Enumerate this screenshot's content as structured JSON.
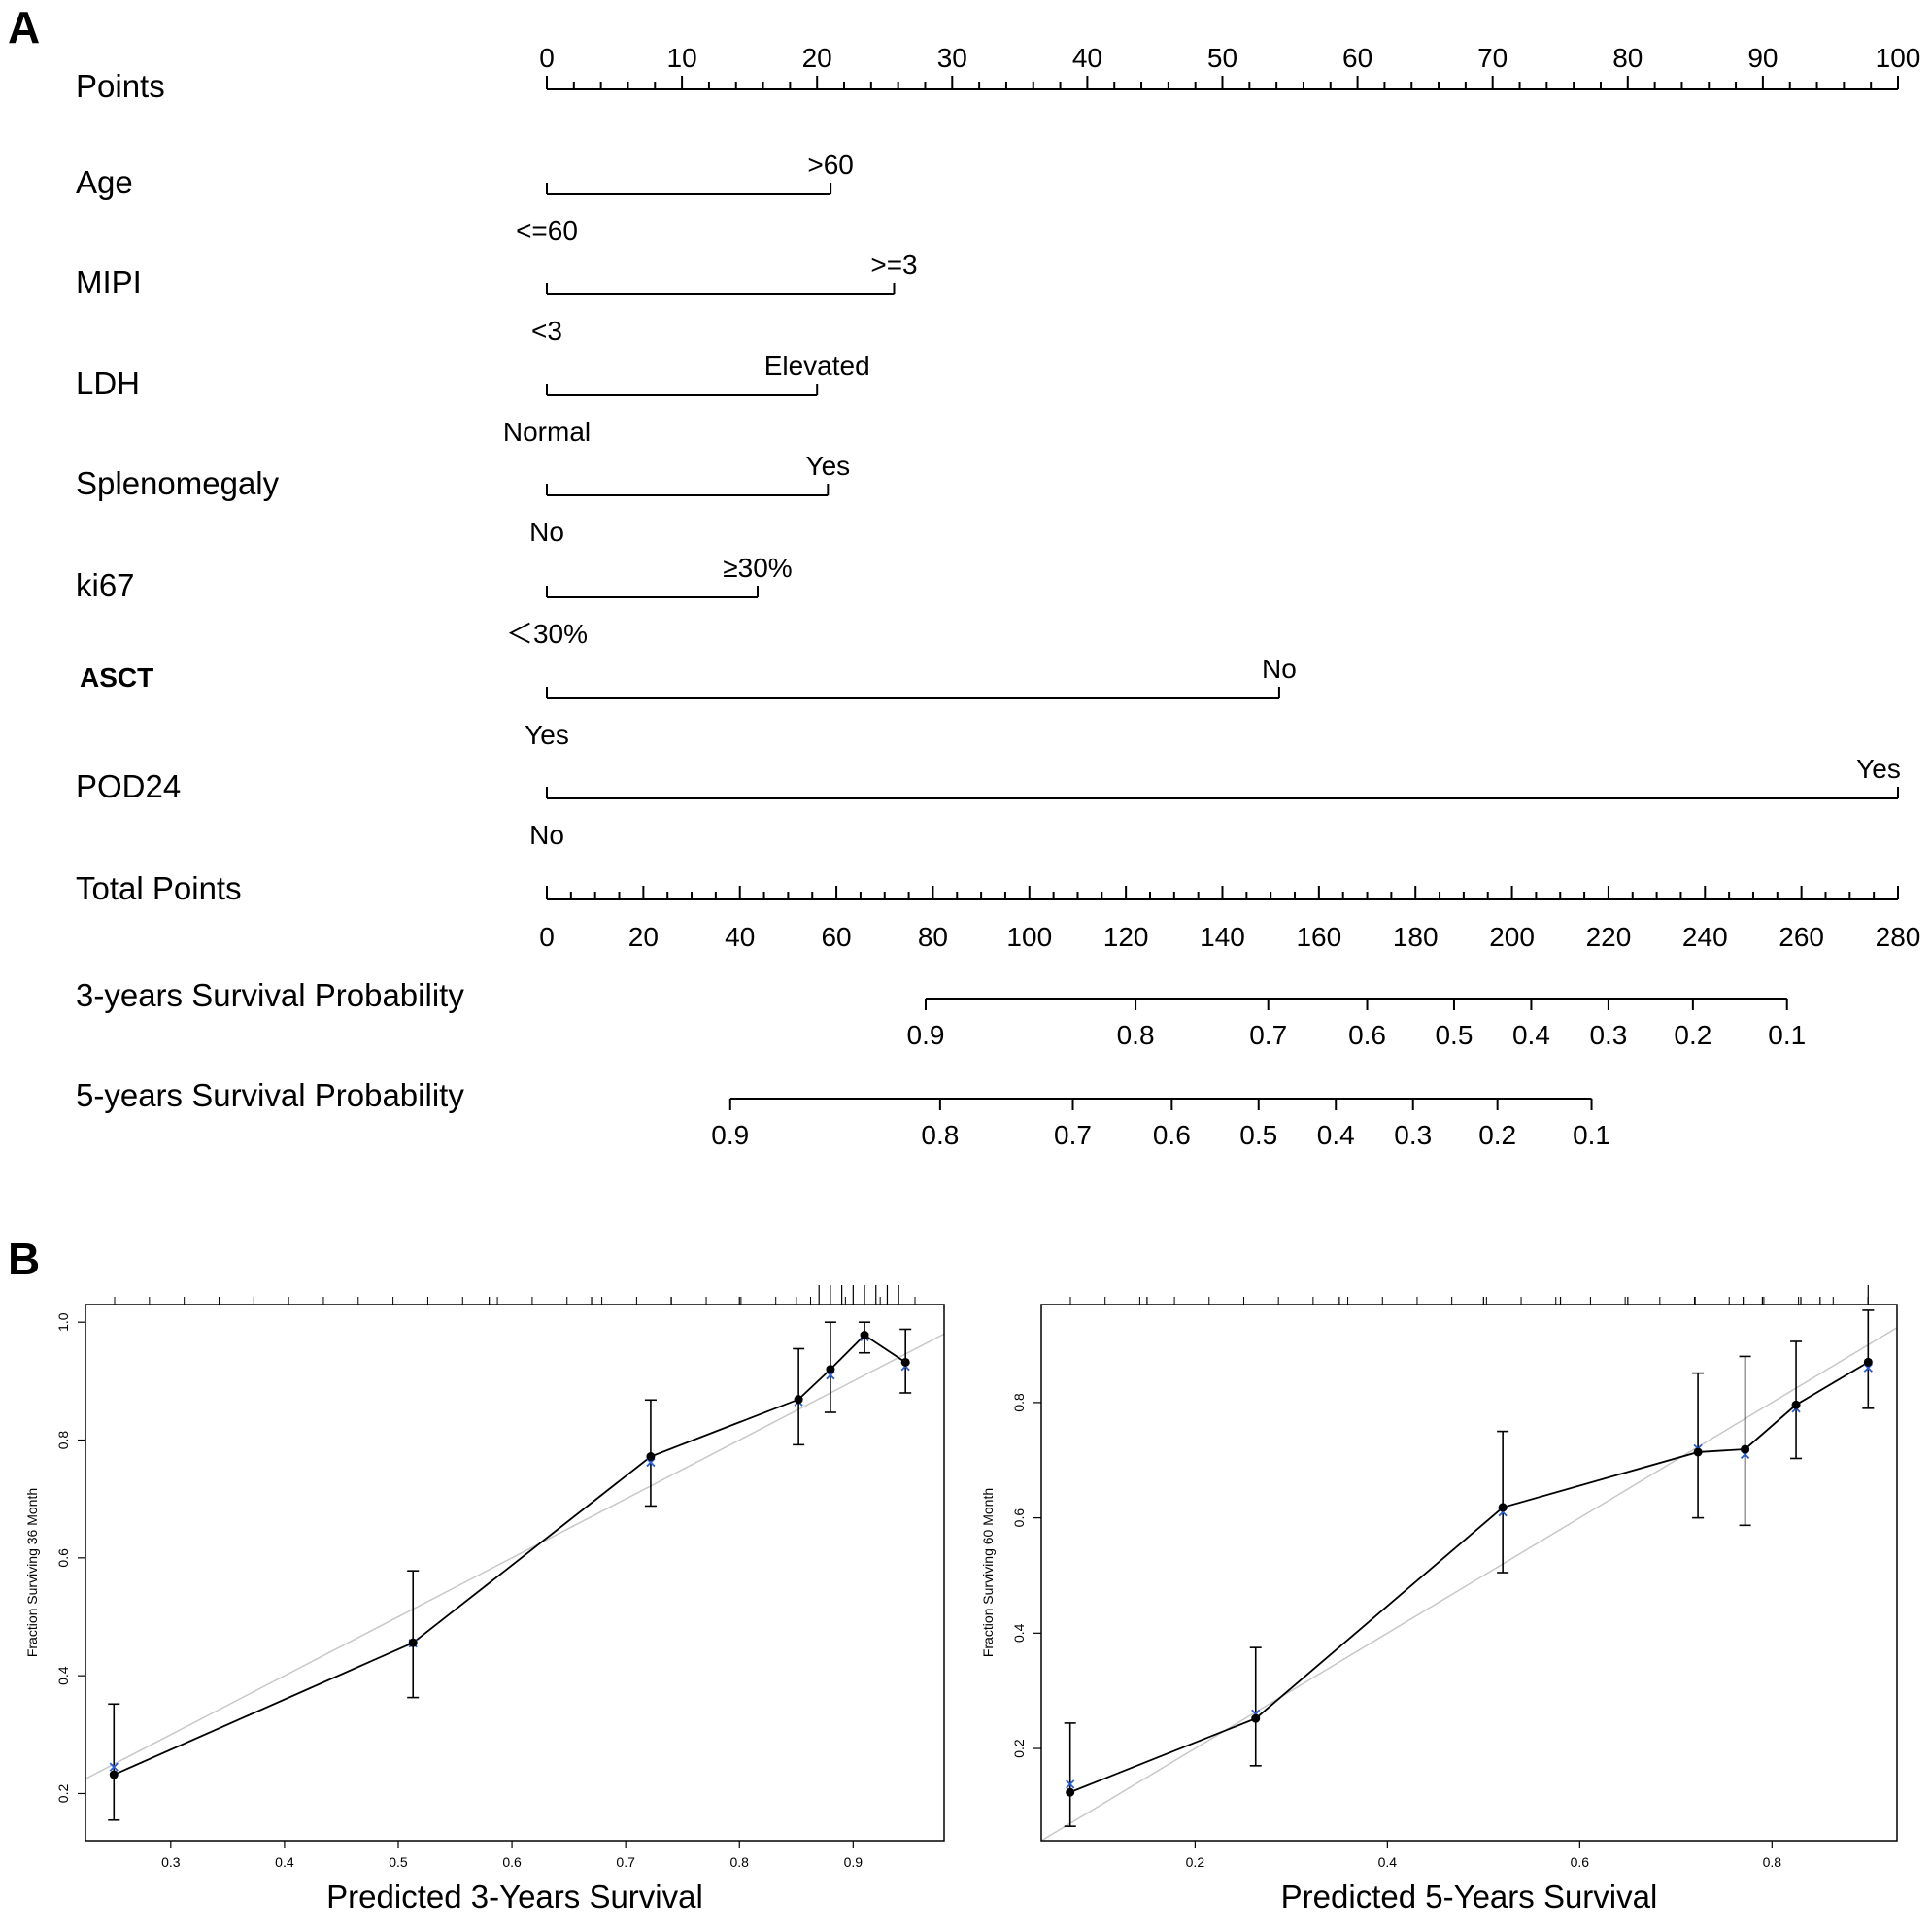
{
  "panel_a_letter": "A",
  "panel_b_letter": "B",
  "chart_data": [
    {
      "type": "nomogram",
      "points_axis": {
        "label": "Points",
        "range": [
          0,
          100
        ],
        "ticks": [
          "0",
          "10",
          "20",
          "30",
          "40",
          "50",
          "60",
          "70",
          "80",
          "90",
          "100"
        ]
      },
      "variables": [
        {
          "name": "Age",
          "bold": false,
          "levels": [
            {
              "label": "<=60",
              "points": 0
            },
            {
              "label": ">60",
              "points": 21
            }
          ]
        },
        {
          "name": "MIPI",
          "bold": false,
          "levels": [
            {
              "label": "<3",
              "points": 0
            },
            {
              "label": ">=3",
              "points": 25.7
            }
          ]
        },
        {
          "name": "LDH",
          "bold": false,
          "levels": [
            {
              "label": "Normal",
              "points": 0
            },
            {
              "label": "Elevated",
              "points": 20
            }
          ]
        },
        {
          "name": "Splenomegaly",
          "bold": false,
          "levels": [
            {
              "label": "No",
              "points": 0
            },
            {
              "label": "Yes",
              "points": 20.8
            }
          ]
        },
        {
          "name": "ki67",
          "bold": false,
          "levels": [
            {
              "label": "＜30%",
              "points": 0
            },
            {
              "label": "≥30%",
              "points": 15.6
            }
          ]
        },
        {
          "name": "ASCT",
          "bold": true,
          "levels": [
            {
              "label": "Yes",
              "points": 0
            },
            {
              "label": "No",
              "points": 54.2
            }
          ]
        },
        {
          "name": "POD24",
          "bold": false,
          "levels": [
            {
              "label": "No",
              "points": 0
            },
            {
              "label": "Yes",
              "points": 100
            }
          ]
        }
      ],
      "total_points_axis": {
        "label": "Total Points",
        "range": [
          0,
          280
        ],
        "ticks": [
          "0",
          "20",
          "40",
          "60",
          "80",
          "100",
          "120",
          "140",
          "160",
          "180",
          "200",
          "220",
          "240",
          "260",
          "280"
        ]
      },
      "survival_axes": [
        {
          "label": "3-years Survival Probability",
          "range_total_points": [
            78.5,
            257
          ],
          "ticks": [
            {
              "label": "0.9",
              "total_points": 78.5
            },
            {
              "label": "0.8",
              "total_points": 122
            },
            {
              "label": "0.7",
              "total_points": 149.5
            },
            {
              "label": "0.6",
              "total_points": 170
            },
            {
              "label": "0.5",
              "total_points": 188
            },
            {
              "label": "0.4",
              "total_points": 204
            },
            {
              "label": "0.3",
              "total_points": 220
            },
            {
              "label": "0.2",
              "total_points": 237.5
            },
            {
              "label": "0.1",
              "total_points": 257
            }
          ]
        },
        {
          "label": "5-years Survival Probability",
          "range_total_points": [
            38,
            216.5
          ],
          "ticks": [
            {
              "label": "0.9",
              "total_points": 38
            },
            {
              "label": "0.8",
              "total_points": 81.5
            },
            {
              "label": "0.7",
              "total_points": 109
            },
            {
              "label": "0.6",
              "total_points": 129.5
            },
            {
              "label": "0.5",
              "total_points": 147.5
            },
            {
              "label": "0.4",
              "total_points": 163.5
            },
            {
              "label": "0.3",
              "total_points": 179.5
            },
            {
              "label": "0.2",
              "total_points": 197
            },
            {
              "label": "0.1",
              "total_points": 216.5
            }
          ]
        }
      ]
    },
    {
      "type": "calibration",
      "xlabel": "Predicted 3-Years Survival",
      "ylabel": "Fraction Surviving 36 Month",
      "xlim": [
        0.225,
        0.98
      ],
      "ylim": [
        0.12,
        1.03
      ],
      "xticks": [
        "0.3",
        "0.4",
        "0.5",
        "0.6",
        "0.7",
        "0.8",
        "0.9"
      ],
      "yticks": [
        "0.2",
        "0.4",
        "0.6",
        "0.8",
        "1.0"
      ],
      "ideal_line": [
        [
          0.225,
          0.225
        ],
        [
          0.98,
          0.98
        ]
      ],
      "points": [
        {
          "x": 0.25,
          "y": 0.232,
          "lo": 0.155,
          "hi": 0.352,
          "corrected": 0.245
        },
        {
          "x": 0.513,
          "y": 0.456,
          "lo": 0.363,
          "hi": 0.578,
          "corrected": 0.455
        },
        {
          "x": 0.722,
          "y": 0.772,
          "lo": 0.688,
          "hi": 0.868,
          "corrected": 0.762
        },
        {
          "x": 0.852,
          "y": 0.869,
          "lo": 0.792,
          "hi": 0.955,
          "corrected": 0.865
        },
        {
          "x": 0.88,
          "y": 0.92,
          "lo": 0.847,
          "hi": 1.0,
          "corrected": 0.91
        },
        {
          "x": 0.91,
          "y": 0.978,
          "lo": 0.948,
          "hi": 1.0,
          "corrected": 0.975
        },
        {
          "x": 0.946,
          "y": 0.932,
          "lo": 0.88,
          "hi": 0.988,
          "corrected": 0.925
        }
      ],
      "rug": [
        0.58,
        0.67,
        0.74,
        0.8,
        0.85,
        0.87,
        0.88,
        0.89,
        0.9,
        0.91,
        0.92,
        0.93,
        0.94
      ]
    },
    {
      "type": "calibration",
      "xlabel": "Predicted 5-Years Survival",
      "ylabel": "Fraction Surviving 60 Month",
      "xlim": [
        0.04,
        0.93
      ],
      "ylim": [
        0.04,
        0.97
      ],
      "xticks": [
        "0.2",
        "0.4",
        "0.6",
        "0.8"
      ],
      "yticks": [
        "0.2",
        "0.4",
        "0.6",
        "0.8"
      ],
      "ideal_line": [
        [
          0.04,
          0.04
        ],
        [
          0.93,
          0.93
        ]
      ],
      "points": [
        {
          "x": 0.07,
          "y": 0.124,
          "lo": 0.065,
          "hi": 0.244,
          "corrected": 0.138
        },
        {
          "x": 0.263,
          "y": 0.252,
          "lo": 0.17,
          "hi": 0.375,
          "corrected": 0.26
        },
        {
          "x": 0.52,
          "y": 0.618,
          "lo": 0.505,
          "hi": 0.75,
          "corrected": 0.61
        },
        {
          "x": 0.723,
          "y": 0.714,
          "lo": 0.6,
          "hi": 0.851,
          "corrected": 0.72
        },
        {
          "x": 0.772,
          "y": 0.719,
          "lo": 0.587,
          "hi": 0.88,
          "corrected": 0.71
        },
        {
          "x": 0.825,
          "y": 0.796,
          "lo": 0.703,
          "hi": 0.906,
          "corrected": 0.79
        },
        {
          "x": 0.9,
          "y": 0.87,
          "lo": 0.79,
          "hi": 0.96,
          "corrected": 0.86
        }
      ],
      "rug": [
        0.15,
        0.35,
        0.5,
        0.58,
        0.65,
        0.72,
        0.77,
        0.79,
        0.83,
        0.85,
        0.9
      ]
    }
  ]
}
